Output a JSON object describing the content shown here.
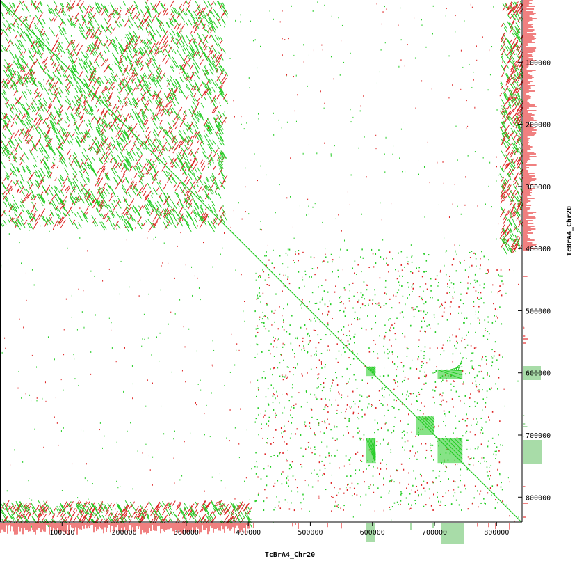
{
  "chart_data": {
    "type": "scatter",
    "subtype": "dot-plot",
    "xlabel": "TcBrA4_Chr20",
    "ylabel": "TcBrA4_Chr20",
    "xlim": [
      0,
      840000
    ],
    "ylim": [
      0,
      840000
    ],
    "x_ticks": [
      100000,
      200000,
      300000,
      400000,
      500000,
      600000,
      700000,
      800000
    ],
    "y_ticks": [
      100000,
      200000,
      300000,
      400000,
      500000,
      600000,
      700000,
      800000
    ],
    "x_tick_labels": [
      "100000",
      "200000",
      "300000",
      "400000",
      "500000",
      "600000",
      "700000",
      "800000"
    ],
    "y_tick_labels": [
      "100000",
      "200000",
      "300000",
      "400000",
      "500000",
      "600000",
      "700000",
      "800000"
    ],
    "colors": {
      "forward": "#22cc22",
      "reverse": "#dd2222",
      "forward_fill": "#a8dca8",
      "reverse_fill": "#f08080",
      "axis": "#000000"
    },
    "series": [
      {
        "name": "diagonal",
        "points": [
          [
            0,
            0
          ],
          [
            840000,
            840000
          ]
        ]
      },
      {
        "name": "forward-blocks",
        "blocks": [
          [
            590000,
            605000,
            590000,
            605000
          ],
          [
            705000,
            745000,
            595000,
            610000
          ],
          [
            590000,
            605000,
            705000,
            745000
          ],
          [
            705000,
            745000,
            705000,
            745000
          ],
          [
            670000,
            700000,
            670000,
            700000
          ]
        ]
      }
    ]
  }
}
